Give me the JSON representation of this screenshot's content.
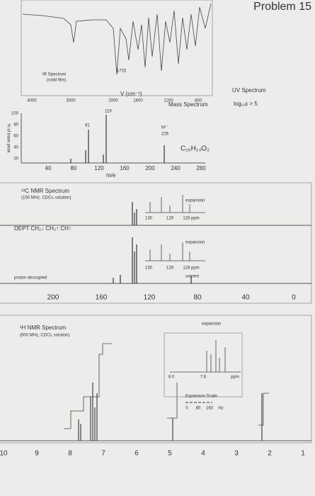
{
  "header": {
    "title": "Problem 15"
  },
  "ir": {
    "title": "IR Spectrum",
    "note": "(solid film)",
    "peak": "1715",
    "x_axis_label": "V (cm⁻¹)",
    "x_ticks": [
      "4000",
      "3000",
      "2000",
      "1600",
      "1200",
      "800"
    ]
  },
  "mass": {
    "title": "Mass Spectrum",
    "y_axis_label": "% of base peak",
    "y_ticks": [
      "100",
      "80",
      "60",
      "40",
      "20"
    ],
    "x_ticks": [
      "40",
      "80",
      "120",
      "160",
      "200",
      "240",
      "280"
    ],
    "x_axis_label": "m/e",
    "peak_labels": [
      "119",
      "91"
    ],
    "molecular_ion": "M⁺˙",
    "molecular_mass": "226",
    "formula": "C₁₅H₁₄O₂"
  },
  "uv": {
    "title": "UV Spectrum",
    "note": "log₁₀ε > 5"
  },
  "c13": {
    "title": "¹³C NMR Spectrum",
    "note": "(150 MHz, CDCl₃ solution)",
    "dept": "DEPT  CH₂↓ CH₃↑ CH↑",
    "decoupled": "proton decoupled",
    "dept_expansion": {
      "label": "expansion",
      "ticks": [
        "130",
        "129",
        "128 ppm"
      ]
    },
    "decoupled_expansion": {
      "label": "expansion",
      "ticks": [
        "130",
        "129",
        "128 ppm"
      ],
      "solvent": "solvent"
    },
    "x_ticks": [
      "200",
      "160",
      "120",
      "80",
      "40",
      "0"
    ]
  },
  "h1": {
    "title": "¹H NMR Spectrum",
    "note": "(600 MHz, CDCl₃ solution)",
    "expansion": {
      "label": "expansion",
      "ticks": [
        "8.0",
        "7.6",
        "ppm"
      ],
      "scale_title": "Expansion Scale",
      "scale_ticks": [
        "0",
        "80",
        "160",
        "Hz"
      ]
    },
    "x_ticks": [
      "10",
      "9",
      "8",
      "7",
      "6",
      "5",
      "4",
      "3",
      "2",
      "1"
    ]
  }
}
